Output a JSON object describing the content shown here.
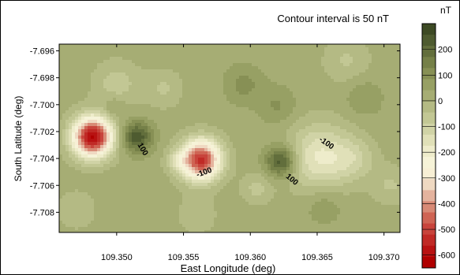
{
  "chart_data": {
    "type": "heatmap",
    "title": "",
    "annotation": "Contour interval is 50 nT",
    "xlabel": "East Longitude (deg)",
    "ylabel": "South Latitude (deg)",
    "xlim": [
      109.3457,
      109.3712
    ],
    "ylim": [
      -7.7095,
      -7.6955
    ],
    "x_ticks": [
      "109.350",
      "109.355",
      "109.360",
      "109.365",
      "109.370"
    ],
    "y_ticks": [
      "-7.696",
      "-7.698",
      "-7.700",
      "-7.702",
      "-7.704",
      "-7.706",
      "-7.708"
    ],
    "x_tick_values": [
      109.35,
      109.355,
      109.36,
      109.365,
      109.37
    ],
    "y_tick_values": [
      -7.696,
      -7.698,
      -7.7,
      -7.702,
      -7.704,
      -7.706,
      -7.708
    ],
    "colorbar": {
      "unit": "nT",
      "ticks": [
        "200",
        "100",
        "0",
        "-100",
        "-200",
        "-300",
        "-400",
        "-500",
        "-600"
      ],
      "tick_values": [
        200,
        100,
        0,
        -100,
        -200,
        -300,
        -400,
        -500,
        -600
      ],
      "range": [
        -650,
        300
      ],
      "colors": [
        "#b00000",
        "#b81212",
        "#c02a26",
        "#c8443c",
        "#cf6454",
        "#d88a76",
        "#e4b39e",
        "#efd9c2",
        "#f7efd5",
        "#f6f3d8",
        "#eeeccb",
        "#e0e0b8",
        "#d0d3a6",
        "#c2c794",
        "#b4ba84",
        "#a6ad74",
        "#97a064",
        "#879055",
        "#758048",
        "#626e3c",
        "#4e5b30",
        "#3d4a24"
      ]
    },
    "contour_labels": [
      {
        "text": "100",
        "x": 109.3518,
        "y": -7.7034,
        "angle": 60
      },
      {
        "text": "-100",
        "x": 109.3566,
        "y": -7.7052,
        "angle": -20
      },
      {
        "text": "100",
        "x": 109.363,
        "y": -7.7057,
        "angle": 40
      },
      {
        "text": "-100",
        "x": 109.3656,
        "y": -7.703,
        "angle": 35
      }
    ],
    "anomalies": [
      {
        "x": 109.3482,
        "y": -7.7024,
        "amplitude": -640,
        "sigma": 0.00105
      },
      {
        "x": 109.3563,
        "y": -7.7041,
        "amplitude": -560,
        "sigma": 0.00105
      },
      {
        "x": 109.3515,
        "y": -7.7024,
        "amplitude": 230,
        "sigma": 0.0008
      },
      {
        "x": 109.3623,
        "y": -7.7042,
        "amplitude": 240,
        "sigma": 0.0008
      },
      {
        "x": 109.3652,
        "y": -7.7039,
        "amplitude": -200,
        "sigma": 0.0017
      },
      {
        "x": 109.3678,
        "y": -7.704,
        "amplitude": -90,
        "sigma": 0.0011
      },
      {
        "x": 109.35,
        "y": -7.6985,
        "amplitude": -90,
        "sigma": 0.0012
      },
      {
        "x": 109.3535,
        "y": -7.6988,
        "amplitude": -70,
        "sigma": 0.001
      },
      {
        "x": 109.3595,
        "y": -7.6985,
        "amplitude": 80,
        "sigma": 0.001
      },
      {
        "x": 109.362,
        "y": -7.7001,
        "amplitude": 70,
        "sigma": 0.001
      },
      {
        "x": 109.3672,
        "y": -7.6967,
        "amplitude": -70,
        "sigma": 0.0012
      },
      {
        "x": 109.3498,
        "y": -7.7002,
        "amplitude": 70,
        "sigma": 0.0006
      },
      {
        "x": 109.347,
        "y": -7.7078,
        "amplitude": -60,
        "sigma": 0.001
      },
      {
        "x": 109.356,
        "y": -7.7082,
        "amplitude": -50,
        "sigma": 0.0011
      },
      {
        "x": 109.3605,
        "y": -7.7062,
        "amplitude": -80,
        "sigma": 0.0008
      },
      {
        "x": 109.3655,
        "y": -7.7075,
        "amplitude": 60,
        "sigma": 0.001
      },
      {
        "x": 109.3705,
        "y": -7.706,
        "amplitude": -70,
        "sigma": 0.001
      },
      {
        "x": 109.3545,
        "y": -7.7042,
        "amplitude": -90,
        "sigma": 0.0006
      },
      {
        "x": 109.3685,
        "y": -7.6995,
        "amplitude": 60,
        "sigma": 0.001
      }
    ],
    "background": 20,
    "grid": false,
    "legend": "right"
  }
}
